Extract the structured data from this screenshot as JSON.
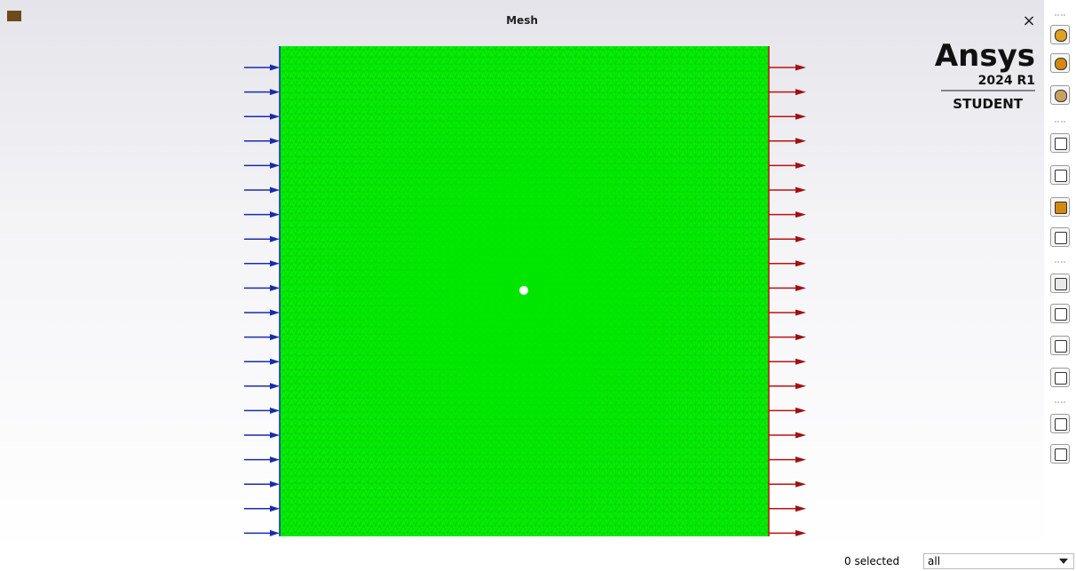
{
  "window": {
    "title": "Mesh",
    "close": "×"
  },
  "logo": {
    "brand": "Ansys",
    "version": "2024 R1",
    "edition": "STUDENT"
  },
  "status": {
    "selected": "0 selected",
    "filter": "all"
  }
}
